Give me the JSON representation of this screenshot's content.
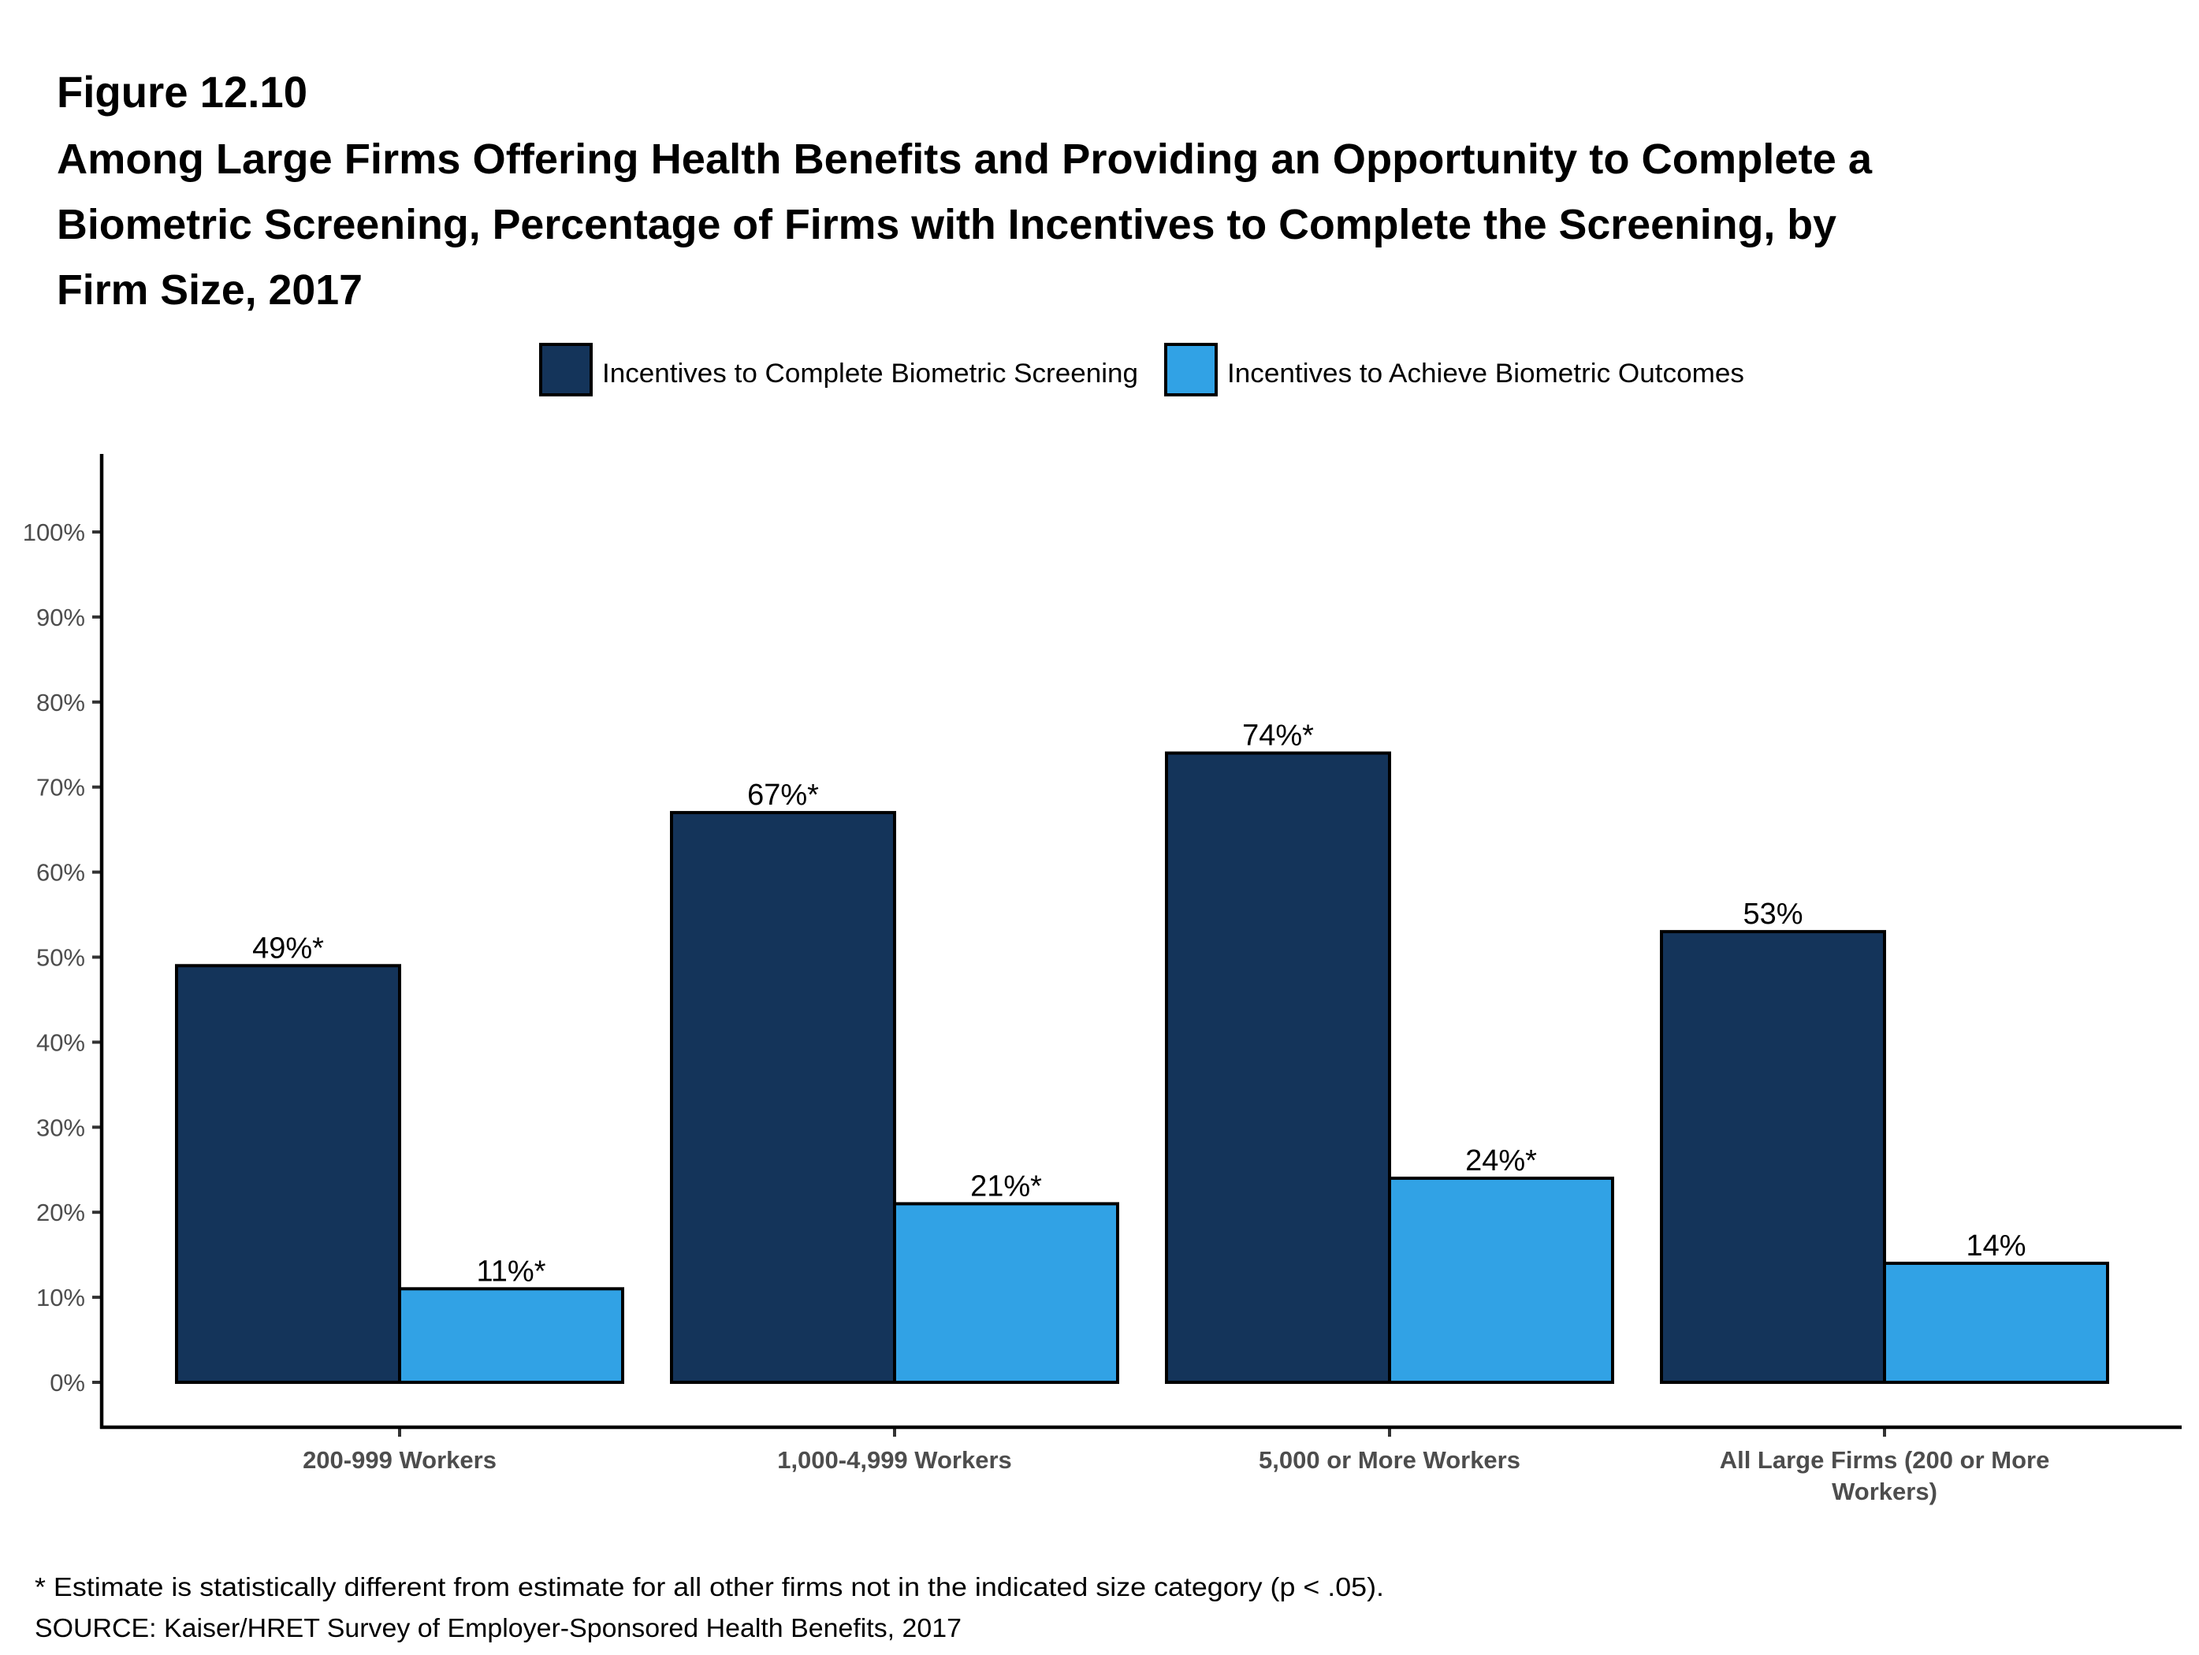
{
  "figure_label": "Figure 12.10",
  "title_lines": [
    "Among Large Firms Offering Health Benefits and Providing an Opportunity to Complete a",
    "Biometric Screening, Percentage of Firms with Incentives to Complete the Screening, by",
    "Firm Size, 2017"
  ],
  "footnote": "* Estimate is statistically different from estimate for all other firms not in the indicated size category (p < .05).",
  "source": "SOURCE: Kaiser/HRET Survey of Employer-Sponsored Health Benefits, 2017",
  "chart_data": {
    "type": "bar",
    "title": "Among Large Firms Offering Health Benefits and Providing an Opportunity to Complete a Biometric Screening, Percentage of Firms with Incentives to Complete the Screening, by Firm Size, 2017",
    "xlabel": "",
    "ylabel": "",
    "ylim": [
      0,
      100
    ],
    "yticks": [
      0,
      10,
      20,
      30,
      40,
      50,
      60,
      70,
      80,
      90,
      100
    ],
    "ytick_labels": [
      "0%",
      "10%",
      "20%",
      "30%",
      "40%",
      "50%",
      "60%",
      "70%",
      "80%",
      "90%",
      "100%"
    ],
    "grid": false,
    "legend_position": "top-center",
    "categories": [
      "200-999 Workers",
      "1,000-4,999 Workers",
      "5,000 or More Workers",
      "All Large Firms (200 or More Workers)"
    ],
    "category_label_lines": [
      [
        "200-999 Workers"
      ],
      [
        "1,000-4,999 Workers"
      ],
      [
        "5,000 or More Workers"
      ],
      [
        "All Large Firms (200 or More",
        "Workers)"
      ]
    ],
    "series": [
      {
        "name": "Incentives to Complete Biometric Screening",
        "color": "#14345a",
        "values": [
          49,
          67,
          74,
          53
        ],
        "labels": [
          "49%*",
          "67%*",
          "74%*",
          "53%"
        ]
      },
      {
        "name": "Incentives to Achieve Biometric Outcomes",
        "color": "#31a2e5",
        "values": [
          11,
          21,
          24,
          14
        ],
        "labels": [
          "11%*",
          "21%*",
          "24%*",
          "14%"
        ]
      }
    ]
  }
}
